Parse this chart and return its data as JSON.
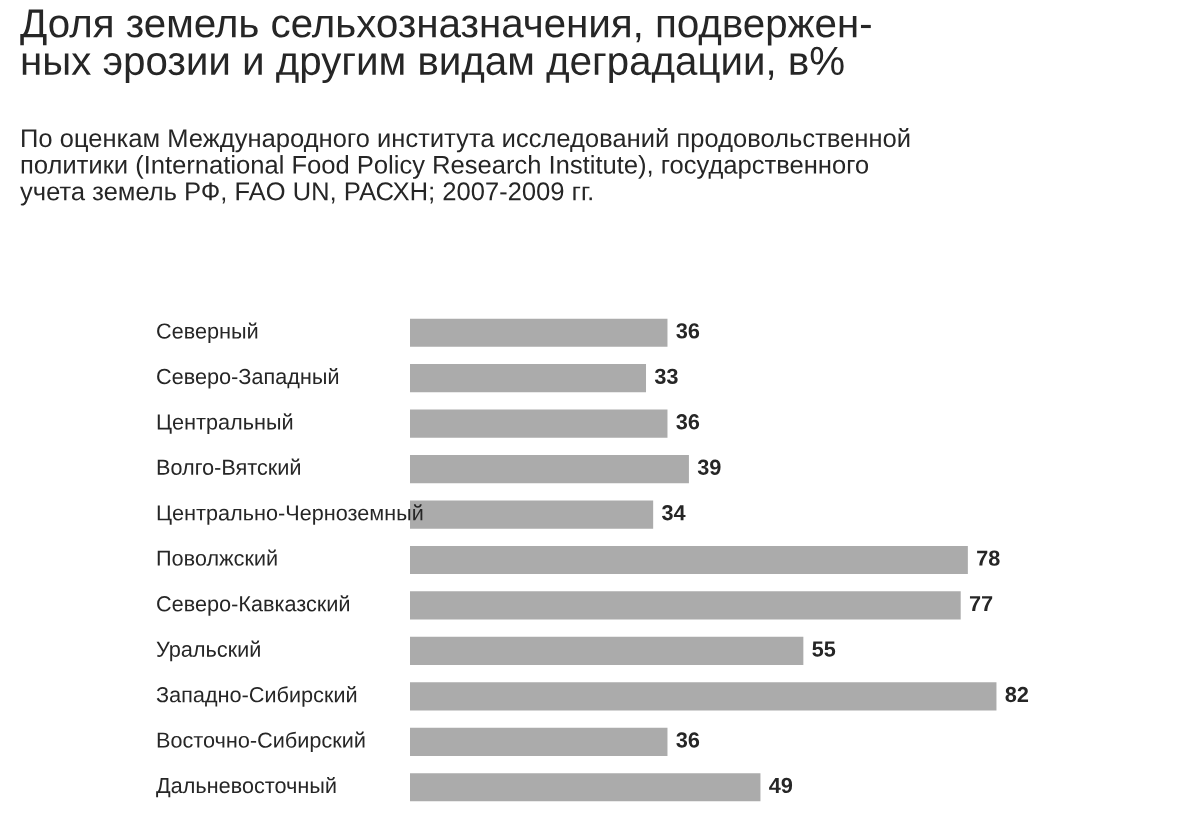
{
  "chart_data": {
    "type": "bar",
    "orientation": "horizontal",
    "title": "Доля земель сельхозназначения, подвержен-\nных эрозии и другим видам деградации, в%",
    "subtitle": "По оценкам Международного института исследований продовольственной\nполитики (International Food Policy Research Institute), государственного\nучета земель РФ, FAO UN, РАСХН; 2007-2009 гг.",
    "categories": [
      "Северный",
      "Северо-Западный",
      "Центральный",
      "Волго-Вятский",
      "Центрально-Черноземный",
      "Поволжский",
      "Северо-Кавказский",
      "Уральский",
      "Западно-Сибирский",
      "Восточно-Сибирский",
      "Дальневосточный"
    ],
    "values": [
      36,
      33,
      36,
      39,
      34,
      78,
      77,
      55,
      82,
      36,
      49
    ],
    "color": "#ababab",
    "data_labels": true
  }
}
